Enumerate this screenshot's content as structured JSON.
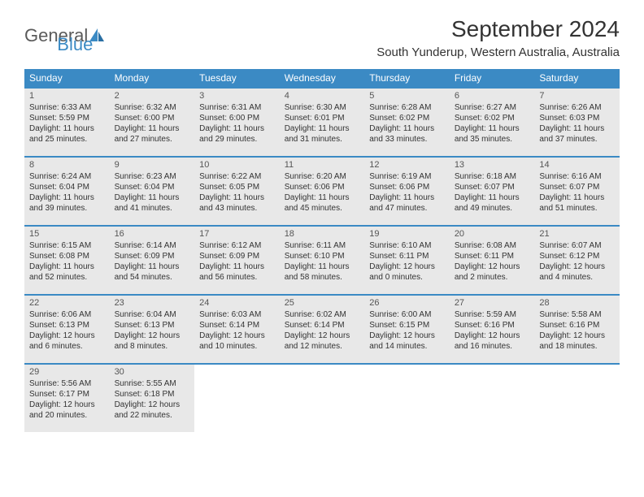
{
  "header": {
    "logo_general": "General",
    "logo_blue": "Blue",
    "title": "September 2024",
    "subtitle": "South Yunderup, Western Australia, Australia"
  },
  "weekdays": [
    "Sunday",
    "Monday",
    "Tuesday",
    "Wednesday",
    "Thursday",
    "Friday",
    "Saturday"
  ],
  "colors": {
    "header_bg": "#3b8ac4",
    "cell_bg": "#e8e8e8",
    "border": "#3b8ac4"
  },
  "days": [
    {
      "n": "1",
      "sr": "Sunrise: 6:33 AM",
      "ss": "Sunset: 5:59 PM",
      "d1": "Daylight: 11 hours",
      "d2": "and 25 minutes."
    },
    {
      "n": "2",
      "sr": "Sunrise: 6:32 AM",
      "ss": "Sunset: 6:00 PM",
      "d1": "Daylight: 11 hours",
      "d2": "and 27 minutes."
    },
    {
      "n": "3",
      "sr": "Sunrise: 6:31 AM",
      "ss": "Sunset: 6:00 PM",
      "d1": "Daylight: 11 hours",
      "d2": "and 29 minutes."
    },
    {
      "n": "4",
      "sr": "Sunrise: 6:30 AM",
      "ss": "Sunset: 6:01 PM",
      "d1": "Daylight: 11 hours",
      "d2": "and 31 minutes."
    },
    {
      "n": "5",
      "sr": "Sunrise: 6:28 AM",
      "ss": "Sunset: 6:02 PM",
      "d1": "Daylight: 11 hours",
      "d2": "and 33 minutes."
    },
    {
      "n": "6",
      "sr": "Sunrise: 6:27 AM",
      "ss": "Sunset: 6:02 PM",
      "d1": "Daylight: 11 hours",
      "d2": "and 35 minutes."
    },
    {
      "n": "7",
      "sr": "Sunrise: 6:26 AM",
      "ss": "Sunset: 6:03 PM",
      "d1": "Daylight: 11 hours",
      "d2": "and 37 minutes."
    },
    {
      "n": "8",
      "sr": "Sunrise: 6:24 AM",
      "ss": "Sunset: 6:04 PM",
      "d1": "Daylight: 11 hours",
      "d2": "and 39 minutes."
    },
    {
      "n": "9",
      "sr": "Sunrise: 6:23 AM",
      "ss": "Sunset: 6:04 PM",
      "d1": "Daylight: 11 hours",
      "d2": "and 41 minutes."
    },
    {
      "n": "10",
      "sr": "Sunrise: 6:22 AM",
      "ss": "Sunset: 6:05 PM",
      "d1": "Daylight: 11 hours",
      "d2": "and 43 minutes."
    },
    {
      "n": "11",
      "sr": "Sunrise: 6:20 AM",
      "ss": "Sunset: 6:06 PM",
      "d1": "Daylight: 11 hours",
      "d2": "and 45 minutes."
    },
    {
      "n": "12",
      "sr": "Sunrise: 6:19 AM",
      "ss": "Sunset: 6:06 PM",
      "d1": "Daylight: 11 hours",
      "d2": "and 47 minutes."
    },
    {
      "n": "13",
      "sr": "Sunrise: 6:18 AM",
      "ss": "Sunset: 6:07 PM",
      "d1": "Daylight: 11 hours",
      "d2": "and 49 minutes."
    },
    {
      "n": "14",
      "sr": "Sunrise: 6:16 AM",
      "ss": "Sunset: 6:07 PM",
      "d1": "Daylight: 11 hours",
      "d2": "and 51 minutes."
    },
    {
      "n": "15",
      "sr": "Sunrise: 6:15 AM",
      "ss": "Sunset: 6:08 PM",
      "d1": "Daylight: 11 hours",
      "d2": "and 52 minutes."
    },
    {
      "n": "16",
      "sr": "Sunrise: 6:14 AM",
      "ss": "Sunset: 6:09 PM",
      "d1": "Daylight: 11 hours",
      "d2": "and 54 minutes."
    },
    {
      "n": "17",
      "sr": "Sunrise: 6:12 AM",
      "ss": "Sunset: 6:09 PM",
      "d1": "Daylight: 11 hours",
      "d2": "and 56 minutes."
    },
    {
      "n": "18",
      "sr": "Sunrise: 6:11 AM",
      "ss": "Sunset: 6:10 PM",
      "d1": "Daylight: 11 hours",
      "d2": "and 58 minutes."
    },
    {
      "n": "19",
      "sr": "Sunrise: 6:10 AM",
      "ss": "Sunset: 6:11 PM",
      "d1": "Daylight: 12 hours",
      "d2": "and 0 minutes."
    },
    {
      "n": "20",
      "sr": "Sunrise: 6:08 AM",
      "ss": "Sunset: 6:11 PM",
      "d1": "Daylight: 12 hours",
      "d2": "and 2 minutes."
    },
    {
      "n": "21",
      "sr": "Sunrise: 6:07 AM",
      "ss": "Sunset: 6:12 PM",
      "d1": "Daylight: 12 hours",
      "d2": "and 4 minutes."
    },
    {
      "n": "22",
      "sr": "Sunrise: 6:06 AM",
      "ss": "Sunset: 6:13 PM",
      "d1": "Daylight: 12 hours",
      "d2": "and 6 minutes."
    },
    {
      "n": "23",
      "sr": "Sunrise: 6:04 AM",
      "ss": "Sunset: 6:13 PM",
      "d1": "Daylight: 12 hours",
      "d2": "and 8 minutes."
    },
    {
      "n": "24",
      "sr": "Sunrise: 6:03 AM",
      "ss": "Sunset: 6:14 PM",
      "d1": "Daylight: 12 hours",
      "d2": "and 10 minutes."
    },
    {
      "n": "25",
      "sr": "Sunrise: 6:02 AM",
      "ss": "Sunset: 6:14 PM",
      "d1": "Daylight: 12 hours",
      "d2": "and 12 minutes."
    },
    {
      "n": "26",
      "sr": "Sunrise: 6:00 AM",
      "ss": "Sunset: 6:15 PM",
      "d1": "Daylight: 12 hours",
      "d2": "and 14 minutes."
    },
    {
      "n": "27",
      "sr": "Sunrise: 5:59 AM",
      "ss": "Sunset: 6:16 PM",
      "d1": "Daylight: 12 hours",
      "d2": "and 16 minutes."
    },
    {
      "n": "28",
      "sr": "Sunrise: 5:58 AM",
      "ss": "Sunset: 6:16 PM",
      "d1": "Daylight: 12 hours",
      "d2": "and 18 minutes."
    },
    {
      "n": "29",
      "sr": "Sunrise: 5:56 AM",
      "ss": "Sunset: 6:17 PM",
      "d1": "Daylight: 12 hours",
      "d2": "and 20 minutes."
    },
    {
      "n": "30",
      "sr": "Sunrise: 5:55 AM",
      "ss": "Sunset: 6:18 PM",
      "d1": "Daylight: 12 hours",
      "d2": "and 22 minutes."
    }
  ]
}
